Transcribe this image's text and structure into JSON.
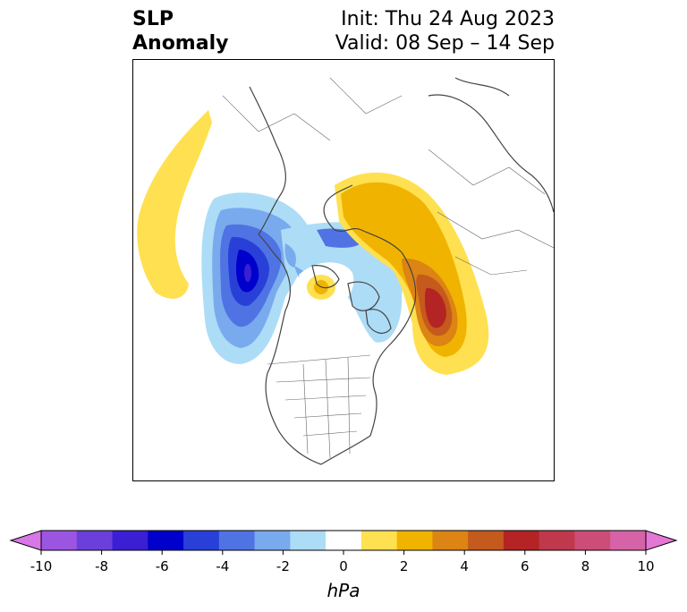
{
  "title": {
    "left_line1": "SLP",
    "left_line2": "Anomaly",
    "right_line1": "Init: Thu 24 Aug 2023",
    "right_line2": "Valid: 08 Sep – 14 Sep"
  },
  "colorbar": {
    "unit_label": "hPa",
    "ticks": [
      "-10",
      "-8",
      "-6",
      "-4",
      "-2",
      "0",
      "2",
      "4",
      "6",
      "8",
      "10"
    ],
    "colors": [
      "#d877e8",
      "#9b55e0",
      "#6b3fd9",
      "#3b1fd3",
      "#0000cc",
      "#2940d8",
      "#4f73e3",
      "#79aaee",
      "#addcf6",
      "#ffffff",
      "#ffe050",
      "#f0b400",
      "#dc8414",
      "#c45a1c",
      "#b42424",
      "#c0384c",
      "#cc4e78",
      "#d663a8",
      "#e477d4"
    ]
  },
  "map": {
    "projection": "polar stereographic, North America / Arctic",
    "anomalies": [
      {
        "name": "negative-anomaly-north-pacific",
        "min_hpa": -6
      },
      {
        "name": "positive-anomaly-greenland-sea",
        "min_hpa": 6
      },
      {
        "name": "positive-anomaly-gulf-of-alaska",
        "min_hpa": 2
      },
      {
        "name": "positive-anomaly-arctic-small",
        "min_hpa": 2
      },
      {
        "name": "negative-anomaly-canadian-archipelago",
        "min_hpa": -2
      }
    ]
  }
}
